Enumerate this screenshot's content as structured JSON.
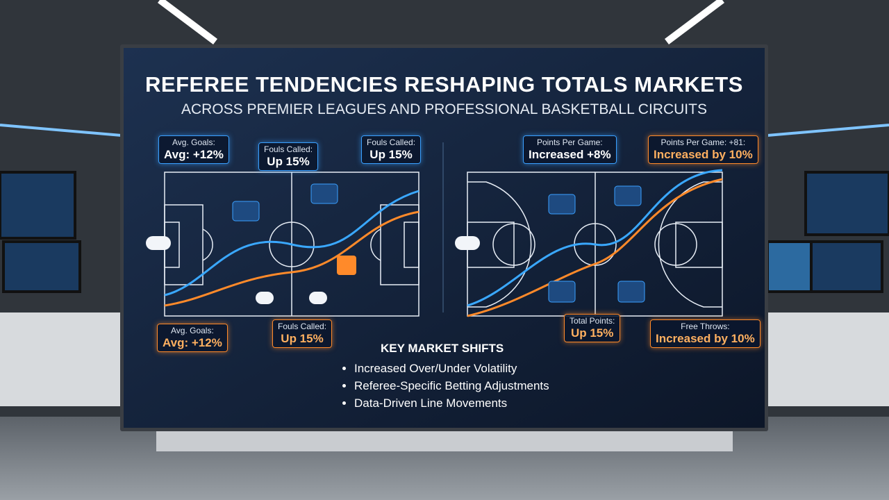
{
  "header": {
    "title": "REFEREE TENDENCIES RESHAPING TOTALS MARKETS",
    "subtitle": "ACROSS PREMIER LEAGUES AND PROFESSIONAL BASKETBALL CIRCUITS"
  },
  "soccer_callouts": [
    {
      "label": "Avg. Goals:",
      "value": "Avg: +12%"
    },
    {
      "label": "Fouls Called:",
      "value": "Up 15%"
    },
    {
      "label": "Fouls Called:",
      "value": "Up 15%"
    },
    {
      "label": "Avg. Goals:",
      "value": "Avg: +12%"
    },
    {
      "label": "Fouls Called:",
      "value": "Up 15%"
    }
  ],
  "basketball_callouts": [
    {
      "label": "Points Per Game:",
      "value": "Increased +8%"
    },
    {
      "label": "Points Per Game: +81:",
      "value": "Increased by 10%"
    },
    {
      "label": "Total Points:",
      "value": "Up 15%"
    },
    {
      "label": "Free Throws:",
      "value": "Increased by 10%"
    }
  ],
  "key_shifts": {
    "title": "KEY MARKET SHIFTS",
    "items": [
      "Increased Over/Under Volatility",
      "Referee-Specific Betting Adjustments",
      "Data-Driven Line Movements"
    ]
  }
}
